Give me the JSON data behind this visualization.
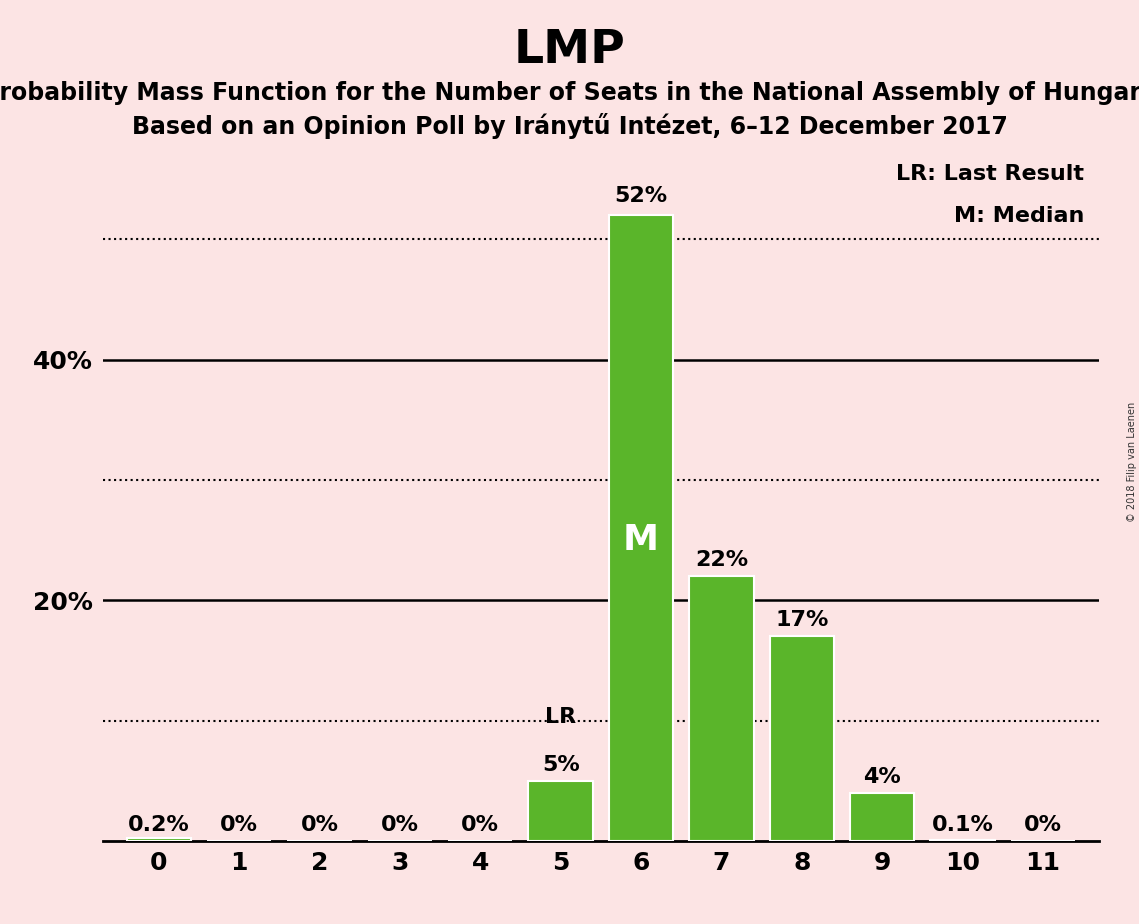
{
  "title": "LMP",
  "subtitle1": "Probability Mass Function for the Number of Seats in the National Assembly of Hungary",
  "subtitle2": "Based on an Opinion Poll by Iránytű Intézet, 6–12 December 2017",
  "copyright": "© 2018 Filip van Laenen",
  "categories": [
    0,
    1,
    2,
    3,
    4,
    5,
    6,
    7,
    8,
    9,
    10,
    11
  ],
  "values": [
    0.2,
    0.0,
    0.0,
    0.0,
    0.0,
    5.0,
    52.0,
    22.0,
    17.0,
    4.0,
    0.1,
    0.0
  ],
  "bar_color": "#5ab52a",
  "bar_edge_color": "#ffffff",
  "background_color": "#fce4e4",
  "ylim_max": 58,
  "solid_grid": [
    20,
    40
  ],
  "dotted_grid": [
    10,
    30,
    50
  ],
  "median_seat": 6,
  "lr_seat": 5,
  "legend_lr": "LR: Last Result",
  "legend_m": "M: Median",
  "title_fontsize": 34,
  "subtitle_fontsize": 17,
  "label_fontsize": 16,
  "axis_fontsize": 18,
  "legend_fontsize": 16,
  "ytick_vals": [
    20,
    40
  ],
  "ytick_labels": [
    "20%",
    "40%"
  ]
}
